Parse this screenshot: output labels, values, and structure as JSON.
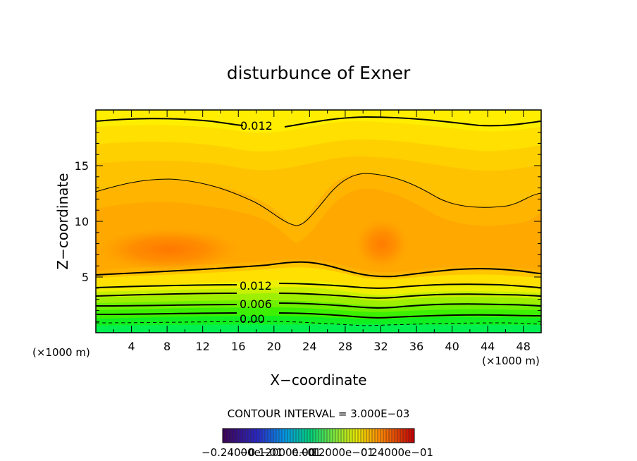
{
  "chart_data": {
    "type": "heatmap",
    "title": "disturbunce of Exner",
    "xlabel": "X−coordinate",
    "ylabel": "Z−coordinate",
    "x_unit": "(×1000 m)",
    "z_unit": "(×1000 m)",
    "xlim": [
      0,
      50
    ],
    "ylim": [
      0,
      20
    ],
    "x_ticks": [
      4,
      8,
      12,
      16,
      20,
      24,
      28,
      32,
      36,
      40,
      44,
      48
    ],
    "y_ticks": [
      5,
      10,
      15
    ],
    "contour_interval_text": "CONTOUR INTERVAL = 3.000E−03",
    "contour_labels": [
      "0.012",
      "0.012",
      "0.006",
      "0.00"
    ],
    "colorbar_labels_text": "−0.24000e−01",
    "colorbar_labels_overlap": [
      "−0.12000e−01",
      "0.00",
      "0.12000e−01",
      "0.24000e−01"
    ],
    "colorbar_range": [
      -0.024,
      0.024
    ],
    "colors": {
      "level_low": "#00f078",
      "level_high_core": "#ff7800",
      "frame": "#000000"
    }
  }
}
